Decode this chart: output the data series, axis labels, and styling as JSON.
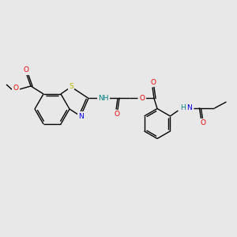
{
  "bg_color": "#e8e8e8",
  "bond_color": "#000000",
  "S_color": "#b8b800",
  "N_color": "#0000ee",
  "O_color": "#ee0000",
  "H_color": "#008080",
  "fig_w": 3.0,
  "fig_h": 3.0,
  "dpi": 100,
  "xlim": [
    0,
    300
  ],
  "ylim": [
    0,
    300
  ]
}
